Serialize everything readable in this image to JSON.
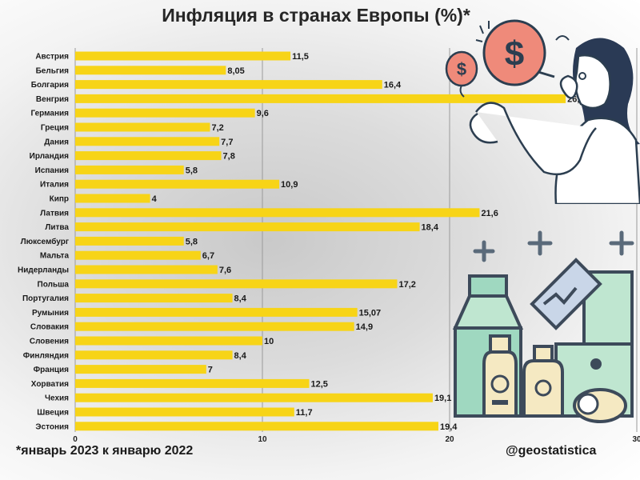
{
  "title": "Инфляция в странах Европы (%)*",
  "footnote": "*январь 2023 к январю 2022",
  "watermark": "@geostatistica",
  "colors": {
    "bar": "#f7d417",
    "grid": "#9a9a9a",
    "text": "#1a1a1a"
  },
  "icons": [
    "dollar-balloon-icon",
    "woman-illustration",
    "grocery-icons-illustration"
  ],
  "chart_data": {
    "type": "bar",
    "orientation": "horizontal",
    "title": "Инфляция в странах Европы (%)*",
    "xlim": [
      0,
      30
    ],
    "xticks": [
      "0",
      "10",
      "20",
      "30"
    ],
    "grid": true,
    "categories": [
      "Австрия",
      "Бельгия",
      "Болгария",
      "Венгрия",
      "Германия",
      "Греция",
      "Дания",
      "Ирландия",
      "Испания",
      "Италия",
      "Кипр",
      "Латвия",
      "Литва",
      "Люксембург",
      "Мальта",
      "Нидерланды",
      "Польша",
      "Португалия",
      "Румыния",
      "Словакия",
      "Словения",
      "Финляндия",
      "Франция",
      "Хорватия",
      "Чехия",
      "Швеция",
      "Эстония"
    ],
    "values": [
      11.5,
      8.05,
      16.4,
      26.2,
      9.6,
      7.2,
      7.7,
      7.8,
      5.8,
      10.9,
      4,
      21.6,
      18.4,
      5.8,
      6.7,
      7.6,
      17.2,
      8.4,
      15.07,
      14.9,
      10,
      8.4,
      7,
      12.5,
      19.1,
      11.7,
      19.4
    ],
    "value_labels": [
      "11,5",
      "8,05",
      "16,4",
      "26,2",
      "9,6",
      "7,2",
      "7,7",
      "7,8",
      "5,8",
      "10,9",
      "4",
      "21,6",
      "18,4",
      "5,8",
      "6,7",
      "7,6",
      "17,2",
      "8,4",
      "15,07",
      "14,9",
      "10",
      "8,4",
      "7",
      "12,5",
      "19,1",
      "11,7",
      "19,4"
    ]
  }
}
